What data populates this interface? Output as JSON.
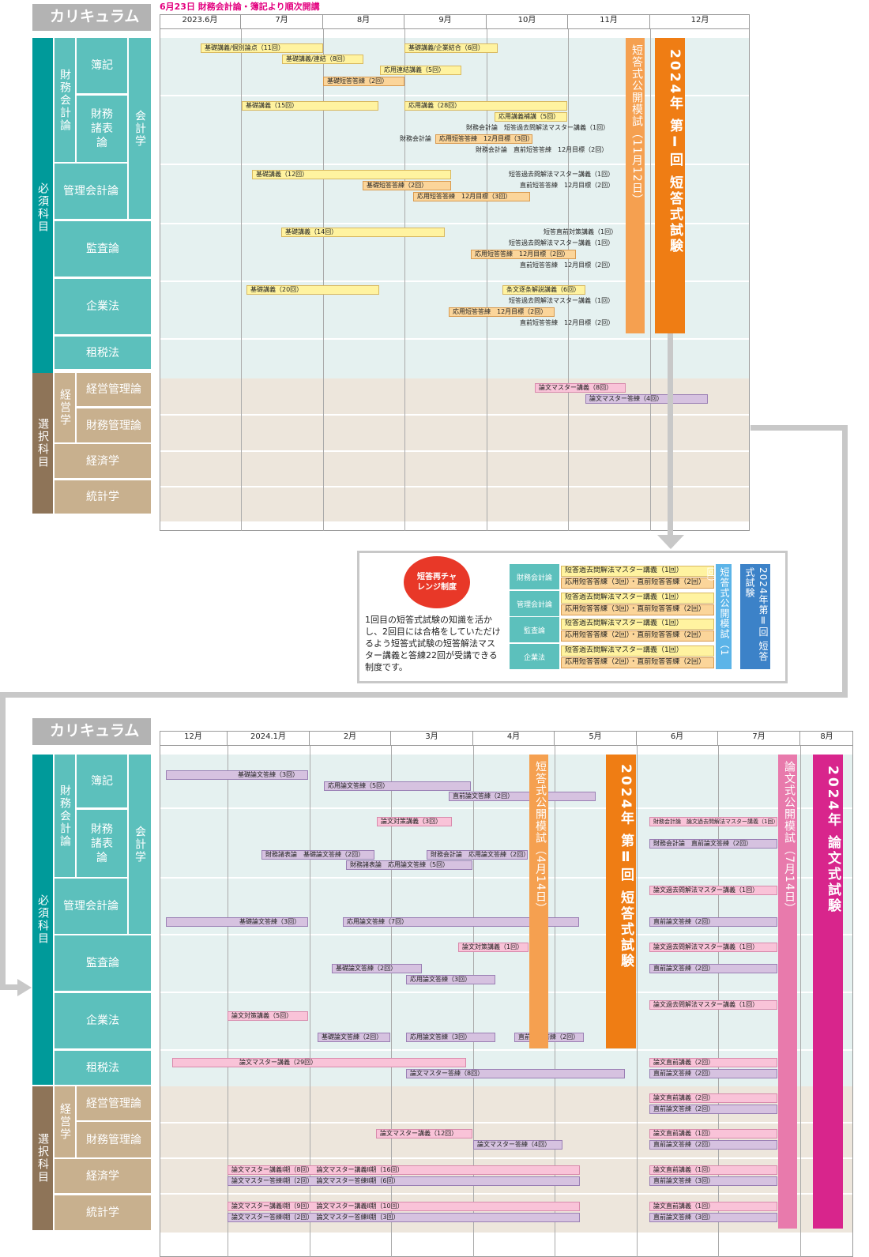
{
  "top": {
    "title": "カリキュラム",
    "note": "6月23日 財務会計論・簿記より順次開講",
    "months": [
      "2023.6月",
      "7月",
      "8月",
      "9月",
      "10月",
      "11月",
      "12月"
    ],
    "labels": {
      "hissu": "必須科目",
      "sentaku": "選択科目",
      "zaimu_kaikei": "財務会計論",
      "kaikeigaku": "会計学",
      "keieigaku": "経営学",
      "boki": "簿記",
      "zaimu_shohyo": "財務諸表論",
      "kanri": "管理会計論",
      "kansa": "監査論",
      "kigyo": "企業法",
      "sozei": "租税法",
      "keiei_kanri": "経営管理論",
      "zaimu_kanri": "財務管理論",
      "keizai": "経済学",
      "tokei": "統計学"
    },
    "bars": [
      "基礎講義/個別論点（11回）",
      "基礎講義/連結（8回）",
      "基礎短答答練（2回）",
      "基礎講義/企業結合（6回）",
      "応用連結講義（5回）",
      "基礎講義（15回）",
      "応用講義（28回）",
      "応用講義補講（5回）",
      "応用短答答練　12月目標（3回）",
      "基礎講義（12回）",
      "基礎短答答練（2回）",
      "応用短答答練　12月目標（3回）",
      "基礎講義（14回）",
      "応用短答答練　12月目標（2回）",
      "基礎講義（20回）",
      "条文逐条解説講義（6回）",
      "応用短答答練　12月目標（2回）",
      "論文マスター講義（8回）",
      "論文マスター答練（4回）"
    ],
    "texts": [
      "財務会計論　短答過去問解法マスター講義（1回）",
      "財務会計論",
      "財務会計論　直前短答答練　12月目標（2回）",
      "短答過去問解法マスター講義（1回）",
      "直前短答答練　12月目標（2回）",
      "短答直前対策講義（1回）",
      "短答過去問解法マスター講義（1回）",
      "直前短答答練　12月目標（2回）",
      "短答過去問解法マスター講義（1回）",
      "直前短答答練　12月目標（2回）"
    ],
    "mock": "短答式公開模試（11月12日）",
    "exam": "2024年 第Ⅰ回 短答式試験"
  },
  "middle": {
    "bubble": "短答再チャレンジ制度",
    "desc": "1回目の短答式試験の知識を活かし、2回目には合格をしていただけるよう短答式試験の短答解法マスター講義と答練22回が受講できる制度です。",
    "subjects": [
      "財務会計論",
      "管理会計論",
      "監査論",
      "企業法"
    ],
    "rows": [
      [
        "短答過去問解法マスター講義（1回）",
        "応用短答答練（3回）・直前短答答練（2回）"
      ],
      [
        "短答過去問解法マスター講義（1回）",
        "応用短答答練（3回）・直前短答答練（2回）"
      ],
      [
        "短答過去問解法マスター講義（1回）",
        "応用短答答練（2回）・直前短答答練（2回）"
      ],
      [
        "短答過去問解法マスター講義（1回）",
        "応用短答答練（2回）・直前短答答練（2回）"
      ]
    ],
    "mock": "短答式公開模試（1回）",
    "exam": "2024年第Ⅱ回 短答式試験"
  },
  "bottom": {
    "title": "カリキュラム",
    "months": [
      "12月",
      "2024.1月",
      "2月",
      "3月",
      "4月",
      "5月",
      "6月",
      "7月",
      "8月"
    ],
    "bars": [
      "基礎論文答練（3回）",
      "応用論文答練（5回）",
      "直前論文答練（2回）",
      "論文対策講義（3回）",
      "財務会計論　論文過去問解法マスター講義（1回）",
      "財務諸表論　基礎論文答練（2回）",
      "財務会計論　応用論文答練（2回）",
      "財務会計論　直前論文答練（2回）",
      "財務諸表論　応用論文答練（5回）",
      "論文過去問解法マスター講義（1回）",
      "基礎論文答練（3回）",
      "応用論文答練（7回）",
      "直前論文答練（2回）",
      "論文対策講義（1回）",
      "論文過去問解法マスター講義（1回）",
      "基礎論文答練（2回）",
      "直前論文答練（2回）",
      "応用論文答練（3回）",
      "論文過去問解法マスター講義（1回）",
      "論文対策講義（5回）",
      "基礎論文答練（2回）",
      "応用論文答練（3回）",
      "直前論文答練（2回）",
      "論文マスター講義（29回）",
      "論文直前講義（2回）",
      "論文マスター答練（8回）",
      "直前論文答練（2回）",
      "論文直前講義（2回）",
      "直前論文答練（2回）",
      "論文マスター講義（12回）",
      "論文直前講義（1回）",
      "論文マスター答練（4回）",
      "直前論文答練（2回）",
      "論文マスター講義Ⅰ期（8回）　論文マスター講義Ⅱ期（16回）",
      "論文直前講義（1回）",
      "論文マスター答練Ⅰ期（2回）　論文マスター答練Ⅱ期（6回）",
      "直前論文答練（3回）",
      "論文マスター講義Ⅰ期（9回）　論文マスター講義Ⅱ期（10回）",
      "論文直前講義（1回）",
      "論文マスター答練Ⅰ期（2回）　論文マスター答練Ⅱ期（3回）",
      "直前論文答練（3回）"
    ],
    "mock1": "短答式公開模試（4月14日）",
    "exam1": "2024年 第Ⅱ回 短答式試験",
    "mock2": "論文式公開模試（7月14日）",
    "exam2": "2024年 論文式試験"
  },
  "colors": {
    "teal": "#5cc0bc",
    "teal_dark": "#009a9a",
    "tan": "#c8b08e",
    "orange": "#ef7d14",
    "magenta": "#d8258c",
    "note": "#e3007f"
  }
}
